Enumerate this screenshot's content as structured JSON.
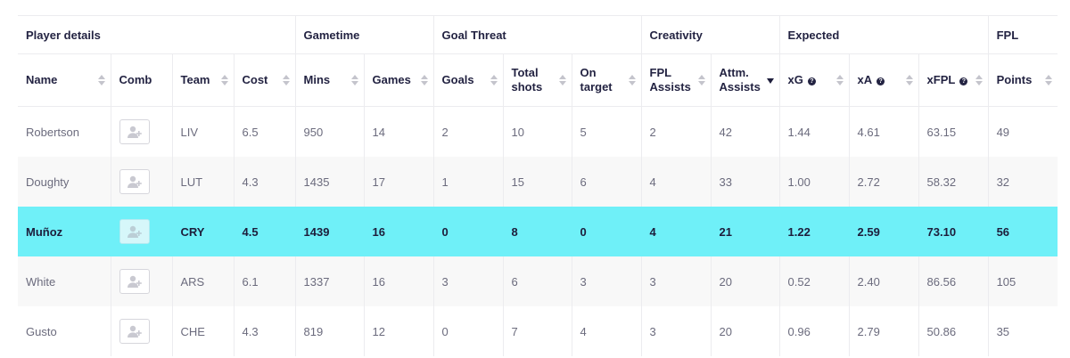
{
  "groups": [
    {
      "label": "Player details",
      "span": 4
    },
    {
      "label": "Gametime",
      "span": 2
    },
    {
      "label": "Goal Threat",
      "span": 3
    },
    {
      "label": "Creativity",
      "span": 2
    },
    {
      "label": "Expected",
      "span": 3
    },
    {
      "label": "FPL",
      "span": 1
    }
  ],
  "columns": [
    {
      "key": "name",
      "label": "Name",
      "sort": "none",
      "help": false
    },
    {
      "key": "comb",
      "label": "Comb",
      "sort": "",
      "help": false
    },
    {
      "key": "team",
      "label": "Team",
      "sort": "none",
      "help": false
    },
    {
      "key": "cost",
      "label": "Cost",
      "sort": "none",
      "help": false
    },
    {
      "key": "mins",
      "label": "Mins",
      "sort": "none",
      "help": false
    },
    {
      "key": "games",
      "label": "Games",
      "sort": "none",
      "help": false
    },
    {
      "key": "goals",
      "label": "Goals",
      "sort": "none",
      "help": false
    },
    {
      "key": "total_shots",
      "label": "Total shots",
      "sort": "none",
      "help": false
    },
    {
      "key": "on_target",
      "label": "On target",
      "sort": "none",
      "help": false
    },
    {
      "key": "fpl_assists",
      "label": "FPL Assists",
      "sort": "none",
      "help": false
    },
    {
      "key": "attm_assists",
      "label": "Attm. Assists",
      "sort": "desc",
      "help": false
    },
    {
      "key": "xg",
      "label": "xG",
      "sort": "none",
      "help": true
    },
    {
      "key": "xa",
      "label": "xA",
      "sort": "none",
      "help": true
    },
    {
      "key": "xfpl",
      "label": "xFPL",
      "sort": "none",
      "help": true
    },
    {
      "key": "points",
      "label": "Points",
      "sort": "none",
      "help": false
    }
  ],
  "help_glyph": "?",
  "rows": [
    {
      "name": "Robertson",
      "team": "LIV",
      "cost": "6.5",
      "mins": "950",
      "games": "14",
      "goals": "2",
      "total_shots": "10",
      "on_target": "5",
      "fpl_assists": "2",
      "attm_assists": "42",
      "xg": "1.44",
      "xa": "4.61",
      "xfpl": "63.15",
      "points": "49",
      "highlight": false
    },
    {
      "name": "Doughty",
      "team": "LUT",
      "cost": "4.3",
      "mins": "1435",
      "games": "17",
      "goals": "1",
      "total_shots": "15",
      "on_target": "6",
      "fpl_assists": "4",
      "attm_assists": "33",
      "xg": "1.00",
      "xa": "2.72",
      "xfpl": "58.32",
      "points": "32",
      "highlight": false
    },
    {
      "name": "Muñoz",
      "team": "CRY",
      "cost": "4.5",
      "mins": "1439",
      "games": "16",
      "goals": "0",
      "total_shots": "8",
      "on_target": "0",
      "fpl_assists": "4",
      "attm_assists": "21",
      "xg": "1.22",
      "xa": "2.59",
      "xfpl": "73.10",
      "points": "56",
      "highlight": true
    },
    {
      "name": "White",
      "team": "ARS",
      "cost": "6.1",
      "mins": "1337",
      "games": "16",
      "goals": "3",
      "total_shots": "6",
      "on_target": "3",
      "fpl_assists": "3",
      "attm_assists": "20",
      "xg": "0.52",
      "xa": "2.40",
      "xfpl": "86.56",
      "points": "105",
      "highlight": false
    },
    {
      "name": "Gusto",
      "team": "CHE",
      "cost": "4.3",
      "mins": "819",
      "games": "12",
      "goals": "0",
      "total_shots": "7",
      "on_target": "4",
      "fpl_assists": "3",
      "attm_assists": "20",
      "xg": "0.96",
      "xa": "2.79",
      "xfpl": "50.86",
      "points": "35",
      "highlight": false
    }
  ],
  "icons": {
    "comb": "add-user-icon"
  },
  "colors": {
    "highlight": "#6ff0f8",
    "text": "#1d1d3b",
    "muted": "#6b6b7d"
  }
}
